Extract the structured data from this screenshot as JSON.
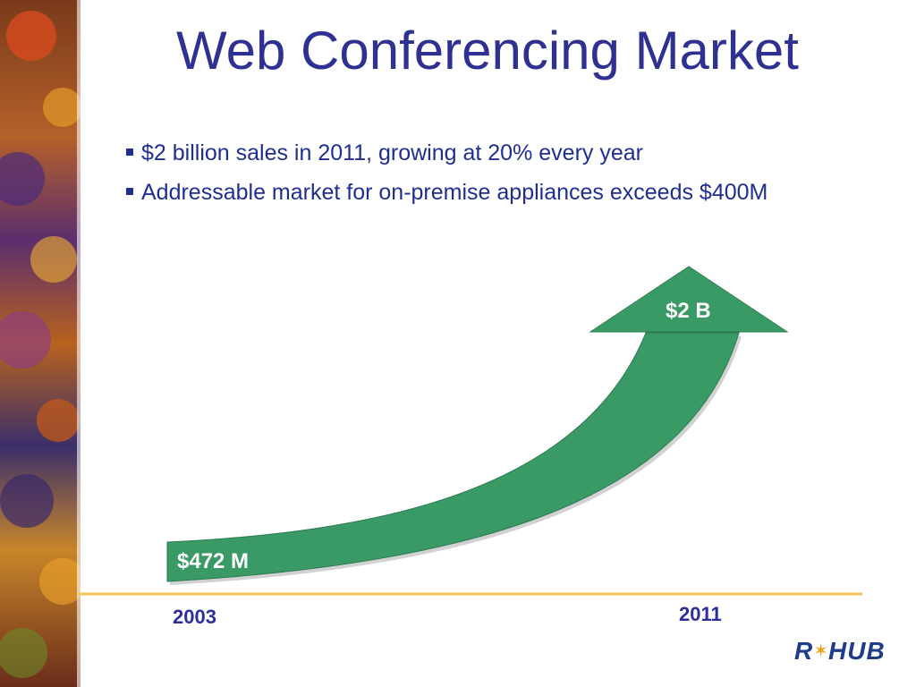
{
  "slide": {
    "title": "Web Conferencing Market",
    "bullets": [
      {
        "text": "$2 billion sales in 2011, growing at 20% every year"
      },
      {
        "text": "Addressable market for on-premise appliances exceeds $400M"
      }
    ]
  },
  "chart_data": {
    "type": "area",
    "title": "",
    "x": [
      "2003",
      "2011"
    ],
    "series": [
      {
        "values": [
          472,
          2000
        ]
      }
    ],
    "data_labels": [
      "$472 M",
      "$2 B"
    ],
    "colors": {
      "arrow": "#3a9a66",
      "baseline": "#f2c25b"
    }
  },
  "logo": {
    "left": "R",
    "right": "HUB"
  }
}
